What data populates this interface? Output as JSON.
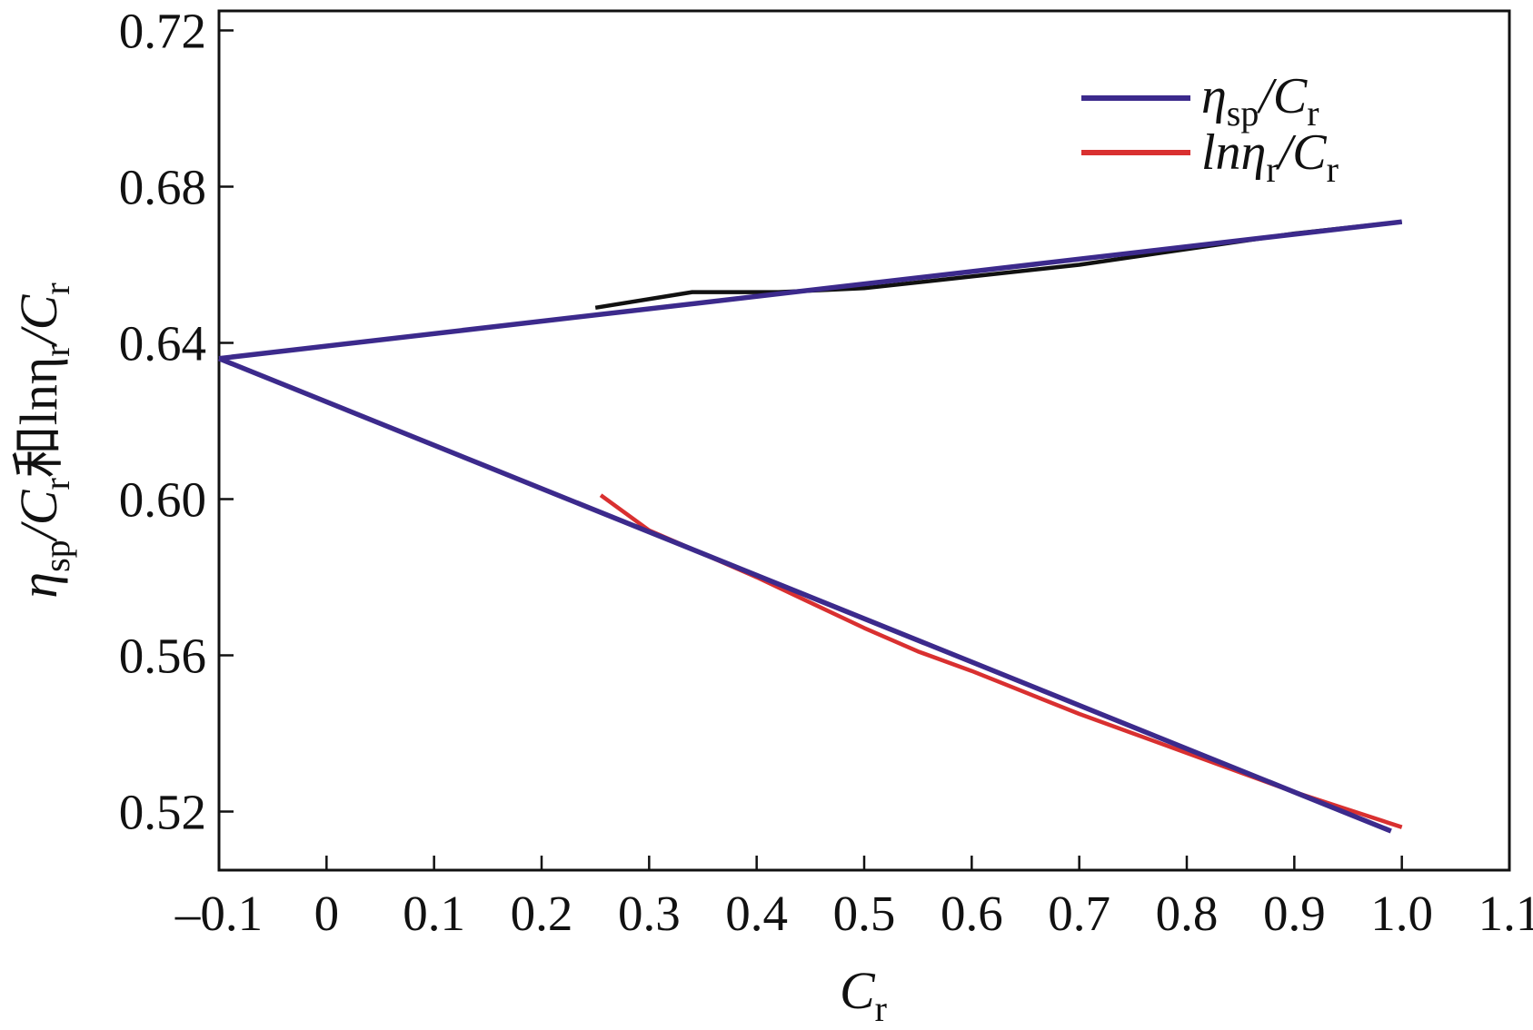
{
  "chart_data": {
    "type": "line",
    "title": "",
    "xlabel": {
      "main": "C",
      "sub": "r"
    },
    "ylabel": {
      "parts": [
        "η",
        "sp",
        "/C",
        "r",
        "和lnη",
        "r",
        "/C",
        "r"
      ]
    },
    "xlim": [
      -0.1,
      1.1
    ],
    "ylim": [
      0.505,
      0.725
    ],
    "x_ticks": [
      -0.1,
      0,
      0.1,
      0.2,
      0.3,
      0.4,
      0.5,
      0.6,
      0.7,
      0.8,
      0.9,
      1.0,
      1.1
    ],
    "x_tick_labels": [
      "–0.1",
      "0",
      "0.1",
      "0.2",
      "0.3",
      "0.4",
      "0.5",
      "0.6",
      "0.7",
      "0.8",
      "0.9",
      "1.0",
      "1.1"
    ],
    "y_ticks": [
      0.52,
      0.56,
      0.6,
      0.64,
      0.68,
      0.72
    ],
    "y_tick_labels": [
      "0.52",
      "0.56",
      "0.60",
      "0.64",
      "0.68",
      "0.72"
    ],
    "grid": false,
    "legend_position": "top-right",
    "series": [
      {
        "name": "ηsp/Cr",
        "legend_main": "η",
        "legend_sub1": "sp",
        "legend_mid": "/C",
        "legend_sub2": "r",
        "role": "fit",
        "color": "#3c2a8c",
        "x": [
          -0.1,
          1.0
        ],
        "y": [
          0.636,
          0.671
        ]
      },
      {
        "name": "ηsp/Cr data",
        "role": "data",
        "color": "#111111",
        "x": [
          0.25,
          0.34,
          0.42,
          0.5,
          0.6,
          0.7,
          0.8,
          0.9,
          1.0
        ],
        "y": [
          0.649,
          0.653,
          0.653,
          0.654,
          0.657,
          0.66,
          0.664,
          0.668,
          0.671
        ]
      },
      {
        "name": "lnηr/Cr",
        "legend_main": "lnη",
        "legend_sub1": "r",
        "legend_mid": "/C",
        "legend_sub2": "r",
        "role": "data",
        "color": "#d93030",
        "x": [
          0.255,
          0.3,
          0.4,
          0.5,
          0.55,
          0.6,
          0.7,
          0.8,
          0.9,
          1.0
        ],
        "y": [
          0.601,
          0.592,
          0.58,
          0.567,
          0.561,
          0.556,
          0.545,
          0.535,
          0.525,
          0.516
        ]
      },
      {
        "name": "lnηr/Cr fit",
        "role": "fit",
        "color": "#3c2a8c",
        "x": [
          -0.1,
          0.99
        ],
        "y": [
          0.636,
          0.515
        ]
      }
    ]
  }
}
